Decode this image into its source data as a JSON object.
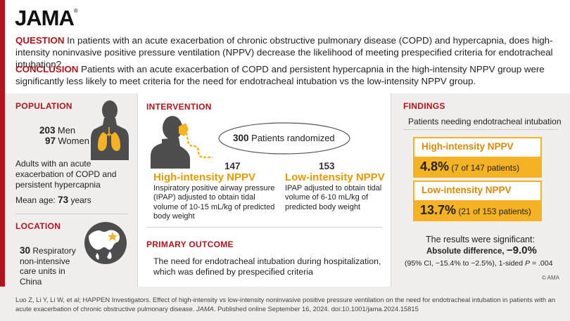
{
  "brand": {
    "logo": "JAMA",
    "logo_mark": "®"
  },
  "question": {
    "label": "QUESTION",
    "text": "In patients with an acute exacerbation of chronic obstructive pulmonary disease (COPD) and hypercapnia, does high-intensity noninvasive positive pressure ventilation (NPPV) decrease the likelihood of meeting prespecified criteria for endotracheal intubation?"
  },
  "conclusion": {
    "label": "CONCLUSION",
    "text": "Patients with an acute exacerbation of COPD and persistent hypercapnia in the high-intensity NPPV group were significantly less likely to meet criteria for the need for endotracheal intubation vs the low-intensity NPPV group."
  },
  "population": {
    "header": "POPULATION",
    "men_count": "203",
    "men_label": "Men",
    "women_count": "97",
    "women_label": "Women",
    "description": "Adults with an acute exacerbation of COPD and persistent hypercapnia",
    "mean_age_label": "Mean age:",
    "mean_age_value": "73",
    "mean_age_unit": "years"
  },
  "location": {
    "header": "LOCATION",
    "count": "30",
    "description_first": "Respiratory",
    "description_rest": "non-intensive care units in China"
  },
  "intervention": {
    "header": "INTERVENTION",
    "randomized_count": "300",
    "randomized_label": "Patients randomized",
    "high": {
      "n": "147",
      "title": "High-intensity NPPV",
      "description": "Inspiratory positive airway pressure (IPAP) adjusted to obtain tidal volume of 10-15 mL/kg of predicted body weight"
    },
    "low": {
      "n": "153",
      "title": "Low-intensity NPPV",
      "description": "IPAP adjusted to obtain tidal volume of 6-10 mL/kg of predicted body weight"
    }
  },
  "primary_outcome": {
    "header": "PRIMARY OUTCOME",
    "text": "The need for endotracheal intubation during hospitalization, which was defined by prespecified criteria"
  },
  "findings": {
    "header": "FINDINGS",
    "subtitle": "Patients needing endotracheal intubation",
    "high": {
      "title": "High-intensity NPPV",
      "pct": "4.8%",
      "detail": "(7 of 147 patients)"
    },
    "low": {
      "title": "Low-intensity NPPV",
      "pct": "13.7%",
      "detail": "(21 of 153 patients)"
    },
    "significance": "The results were significant:",
    "abs_diff_label": "Absolute difference,",
    "abs_diff_value": "−9.0%",
    "ci_text": "(95% CI, −15.4% to −2.5%), 1-sided",
    "p_label": "P",
    "p_value": "= .004"
  },
  "copyright": "© AMA",
  "citation": {
    "prefix": "Luo Z, Li Y, Li W, et al; HAPPEN Investigators. Effect of high-intensity vs low-intensity noninvasive positive pressure ventilation on the need for endotracheal intubation in patients with an acute exacerbation of chronic obstructive pulmonary disease.",
    "journal": "JAMA",
    "suffix": ". Published online September 16, 2024. doi:10.1001/jama.2024.15815"
  },
  "colors": {
    "brand_red": "#b5121b",
    "accent_orange": "#e59a00",
    "highlight_yellow": "#f5b323",
    "panel_gray": "#efeeec"
  }
}
